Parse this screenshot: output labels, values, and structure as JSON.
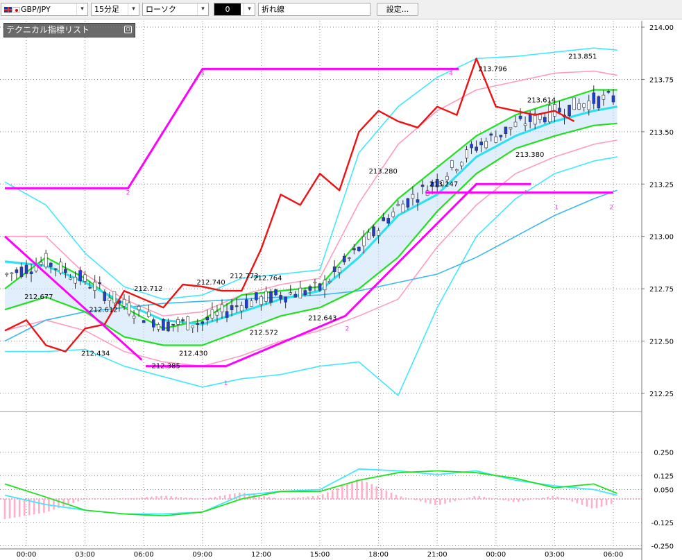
{
  "toolbar": {
    "symbol": "GBP/JPY",
    "timeframe": "15分足",
    "chart_style": "ローソク",
    "indicator_slot": "0",
    "indicator_name": "折れ線",
    "settings_label": "設定...",
    "dropdown_glyph": "▾"
  },
  "indicator_panel": {
    "title": "テクニカル指標リスト",
    "button_glyph": "▫"
  },
  "colors": {
    "up_candle": "#ffffff",
    "down_candle": "#1f3fd0",
    "ma_fast": "#2fe0f0",
    "ma_slow": "#3ab8f0",
    "bb_outer": "#40e8ff",
    "bb_inner": "#ff9ac0",
    "bb_mid": "#20e020",
    "trend": "#ff00ff",
    "osc_red": "#ee1111",
    "macd_line": "#40e8ff",
    "signal_line": "#20e020",
    "hist": "#ffb0c8",
    "cloud": "#c8e0f8",
    "cloud_pink": "#f8c0d8"
  },
  "chart_data": {
    "type": "line",
    "price_axis": {
      "ticks": [
        "214.00",
        "213.75",
        "213.50",
        "213.25",
        "213.00",
        "212.75",
        "212.50",
        "212.25"
      ],
      "ylim": [
        212.18,
        214.03
      ]
    },
    "osc_axis": {
      "ticks": [
        "0.250",
        "0.125",
        "0.050",
        "-0.125",
        "-0.250"
      ]
    },
    "time_axis": {
      "ticks": [
        "00:00",
        "03:00",
        "06:00",
        "09:00",
        "12:00",
        "15:00",
        "18:00",
        "21:00",
        "00:00",
        "03:00",
        "06:00"
      ]
    },
    "price_labels": [
      {
        "text": "212.677",
        "t": -0.1,
        "v": 212.7
      },
      {
        "text": "212.612",
        "t": 3.2,
        "v": 212.64
      },
      {
        "text": "212.434",
        "t": 2.8,
        "v": 212.43
      },
      {
        "text": "212.712",
        "t": 5.5,
        "v": 212.74
      },
      {
        "text": "212.385",
        "t": 6.4,
        "v": 212.37
      },
      {
        "text": "212.430",
        "t": 7.8,
        "v": 212.43
      },
      {
        "text": "212.740",
        "t": 8.7,
        "v": 212.77
      },
      {
        "text": "212.773",
        "t": 10.4,
        "v": 212.8
      },
      {
        "text": "212.764",
        "t": 11.6,
        "v": 212.79
      },
      {
        "text": "212.572",
        "t": 11.4,
        "v": 212.53
      },
      {
        "text": "212.643",
        "t": 14.4,
        "v": 212.6
      },
      {
        "text": "213.280",
        "t": 17.5,
        "v": 213.3
      },
      {
        "text": "213.247",
        "t": 20.6,
        "v": 213.24
      },
      {
        "text": "213.796",
        "t": 23.1,
        "v": 213.79
      },
      {
        "text": "213.614",
        "t": 25.6,
        "v": 213.64
      },
      {
        "text": "213.380",
        "t": 25.0,
        "v": 213.38
      },
      {
        "text": "213.851",
        "t": 27.7,
        "v": 213.85
      }
    ],
    "wave_numbers": [
      {
        "text": "2",
        "t": 5.2,
        "v": 213.2
      },
      {
        "text": "3",
        "t": 9.0,
        "v": 213.77
      },
      {
        "text": "4",
        "t": 21.7,
        "v": 213.77
      },
      {
        "text": "1",
        "t": 10.2,
        "v": 212.29
      },
      {
        "text": "2",
        "t": 16.4,
        "v": 212.55
      },
      {
        "text": "4",
        "t": 25.5,
        "v": 213.2
      },
      {
        "text": "1",
        "t": 27.1,
        "v": 213.13
      },
      {
        "text": "2",
        "t": 29.9,
        "v": 213.13
      }
    ],
    "series": [
      {
        "name": "MA fast",
        "points": [
          [
            -1.1,
            212.88
          ],
          [
            1,
            212.86
          ],
          [
            3,
            212.78
          ],
          [
            5,
            212.68
          ],
          [
            7,
            212.6
          ],
          [
            9,
            212.58
          ],
          [
            11,
            212.64
          ],
          [
            13,
            212.7
          ],
          [
            15,
            212.74
          ],
          [
            17,
            212.9
          ],
          [
            19,
            213.1
          ],
          [
            21,
            213.2
          ],
          [
            23,
            213.38
          ],
          [
            25,
            213.48
          ],
          [
            27,
            213.55
          ],
          [
            29,
            213.6
          ],
          [
            30.2,
            213.62
          ]
        ]
      },
      {
        "name": "MA slow",
        "points": [
          [
            -1.1,
            212.5
          ],
          [
            1,
            212.6
          ],
          [
            3,
            212.64
          ],
          [
            5,
            212.66
          ],
          [
            7,
            212.68
          ],
          [
            9,
            212.69
          ],
          [
            11,
            212.7
          ],
          [
            13,
            212.71
          ],
          [
            15,
            212.72
          ],
          [
            17,
            212.74
          ],
          [
            19,
            212.78
          ],
          [
            21,
            212.82
          ],
          [
            23,
            212.9
          ],
          [
            25,
            213.0
          ],
          [
            27,
            213.1
          ],
          [
            29,
            213.18
          ],
          [
            30.2,
            213.22
          ]
        ]
      },
      {
        "name": "BB mid",
        "points": [
          [
            -1.1,
            212.75
          ],
          [
            1,
            212.9
          ],
          [
            3,
            212.8
          ],
          [
            5,
            212.66
          ],
          [
            7,
            212.56
          ],
          [
            9,
            212.6
          ],
          [
            11,
            212.72
          ],
          [
            13,
            212.74
          ],
          [
            15,
            212.76
          ],
          [
            17,
            212.98
          ],
          [
            19,
            213.18
          ],
          [
            21,
            213.33
          ],
          [
            23,
            213.48
          ],
          [
            25,
            213.58
          ],
          [
            27,
            213.64
          ],
          [
            29,
            213.7
          ],
          [
            30.2,
            213.7
          ]
        ]
      },
      {
        "name": "BB lower",
        "points": [
          [
            -1.1,
            212.65
          ],
          [
            1,
            212.71
          ],
          [
            3,
            212.64
          ],
          [
            5,
            212.52
          ],
          [
            7,
            212.48
          ],
          [
            9,
            212.48
          ],
          [
            11,
            212.55
          ],
          [
            13,
            212.62
          ],
          [
            15,
            212.66
          ],
          [
            17,
            212.75
          ],
          [
            19,
            212.9
          ],
          [
            21,
            213.12
          ],
          [
            23,
            213.3
          ],
          [
            25,
            213.42
          ],
          [
            27,
            213.48
          ],
          [
            29,
            213.53
          ],
          [
            30.2,
            213.54
          ]
        ]
      },
      {
        "name": "BB upper2",
        "points": [
          [
            -1.1,
            213.26
          ],
          [
            1,
            213.15
          ],
          [
            3,
            212.92
          ],
          [
            5,
            212.76
          ],
          [
            7,
            212.7
          ],
          [
            9,
            212.72
          ],
          [
            11,
            212.8
          ],
          [
            13,
            212.82
          ],
          [
            15,
            212.84
          ],
          [
            17,
            213.4
          ],
          [
            19,
            213.62
          ],
          [
            21,
            213.76
          ],
          [
            23,
            213.85
          ],
          [
            25,
            213.86
          ],
          [
            27,
            213.88
          ],
          [
            29,
            213.9
          ],
          [
            30.2,
            213.89
          ]
        ]
      },
      {
        "name": "BB lower2",
        "points": [
          [
            -1.1,
            212.45
          ],
          [
            1,
            212.45
          ],
          [
            3,
            212.46
          ],
          [
            5,
            212.38
          ],
          [
            7,
            212.33
          ],
          [
            9,
            212.28
          ],
          [
            11,
            212.32
          ],
          [
            13,
            212.34
          ],
          [
            15,
            212.38
          ],
          [
            17,
            212.4
          ],
          [
            19,
            212.24
          ],
          [
            21,
            212.66
          ],
          [
            23,
            213.0
          ],
          [
            25,
            213.18
          ],
          [
            27,
            213.3
          ],
          [
            29,
            213.36
          ],
          [
            30.2,
            213.38
          ]
        ]
      },
      {
        "name": "BB upper1",
        "points": [
          [
            -1.1,
            213.0
          ],
          [
            1,
            213.0
          ],
          [
            3,
            212.82
          ],
          [
            5,
            212.7
          ],
          [
            7,
            212.62
          ],
          [
            9,
            212.64
          ],
          [
            11,
            212.72
          ],
          [
            13,
            212.77
          ],
          [
            15,
            212.8
          ],
          [
            17,
            213.16
          ],
          [
            19,
            213.44
          ],
          [
            21,
            213.6
          ],
          [
            23,
            213.7
          ],
          [
            25,
            213.74
          ],
          [
            27,
            213.78
          ],
          [
            29,
            213.79
          ],
          [
            30.2,
            213.77
          ]
        ]
      },
      {
        "name": "BB lower1",
        "points": [
          [
            -1.1,
            212.55
          ],
          [
            1,
            212.6
          ],
          [
            3,
            212.55
          ],
          [
            5,
            212.45
          ],
          [
            7,
            212.4
          ],
          [
            9,
            212.38
          ],
          [
            11,
            212.43
          ],
          [
            13,
            212.5
          ],
          [
            15,
            212.55
          ],
          [
            17,
            212.62
          ],
          [
            19,
            212.7
          ],
          [
            21,
            212.95
          ],
          [
            23,
            213.15
          ],
          [
            25,
            213.3
          ],
          [
            27,
            213.38
          ],
          [
            29,
            213.44
          ],
          [
            30.2,
            213.46
          ]
        ]
      },
      {
        "name": "Oscillator",
        "points": [
          [
            -1.1,
            212.55
          ],
          [
            0,
            212.6
          ],
          [
            1,
            212.48
          ],
          [
            2,
            212.45
          ],
          [
            3,
            212.56
          ],
          [
            4,
            212.58
          ],
          [
            5,
            212.74
          ],
          [
            6,
            212.7
          ],
          [
            7,
            212.66
          ],
          [
            8,
            212.77
          ],
          [
            9,
            212.76
          ],
          [
            10,
            212.74
          ],
          [
            11,
            212.74
          ],
          [
            12,
            212.94
          ],
          [
            13,
            213.2
          ],
          [
            14,
            213.15
          ],
          [
            15,
            213.3
          ],
          [
            16,
            213.22
          ],
          [
            17,
            213.5
          ],
          [
            18,
            213.6
          ],
          [
            19,
            213.55
          ],
          [
            20,
            213.52
          ],
          [
            21,
            213.62
          ],
          [
            22,
            213.58
          ],
          [
            23,
            213.85
          ],
          [
            24,
            213.62
          ],
          [
            25,
            213.6
          ],
          [
            26,
            213.58
          ],
          [
            27,
            213.6
          ],
          [
            28,
            213.55
          ]
        ]
      },
      {
        "name": "Trend",
        "points": [
          [
            -1.1,
            213.23
          ],
          [
            5.2,
            213.23
          ],
          [
            9.0,
            213.8
          ],
          [
            22.1,
            213.8
          ]
        ]
      }
    ],
    "osc_series": [
      {
        "name": "MACD",
        "points": [
          [
            -1.1,
            0.02
          ],
          [
            1,
            -0.03
          ],
          [
            3,
            -0.06
          ],
          [
            5,
            -0.08
          ],
          [
            7,
            -0.08
          ],
          [
            9,
            -0.07
          ],
          [
            11,
            0.02
          ],
          [
            13,
            0.04
          ],
          [
            15,
            0.05
          ],
          [
            17,
            0.16
          ],
          [
            19,
            0.15
          ],
          [
            21,
            0.13
          ],
          [
            23,
            0.15
          ],
          [
            25,
            0.1
          ],
          [
            27,
            0.07
          ],
          [
            29,
            0.05
          ],
          [
            30.2,
            0.02
          ]
        ]
      },
      {
        "name": "Signal",
        "points": [
          [
            -1.1,
            0.08
          ],
          [
            1,
            0.01
          ],
          [
            3,
            -0.06
          ],
          [
            5,
            -0.08
          ],
          [
            7,
            -0.09
          ],
          [
            9,
            -0.07
          ],
          [
            11,
            0.0
          ],
          [
            13,
            0.04
          ],
          [
            15,
            0.04
          ],
          [
            17,
            0.1
          ],
          [
            19,
            0.14
          ],
          [
            21,
            0.15
          ],
          [
            23,
            0.14
          ],
          [
            25,
            0.11
          ],
          [
            27,
            0.06
          ],
          [
            29,
            0.08
          ],
          [
            30.2,
            0.03
          ]
        ]
      }
    ]
  }
}
